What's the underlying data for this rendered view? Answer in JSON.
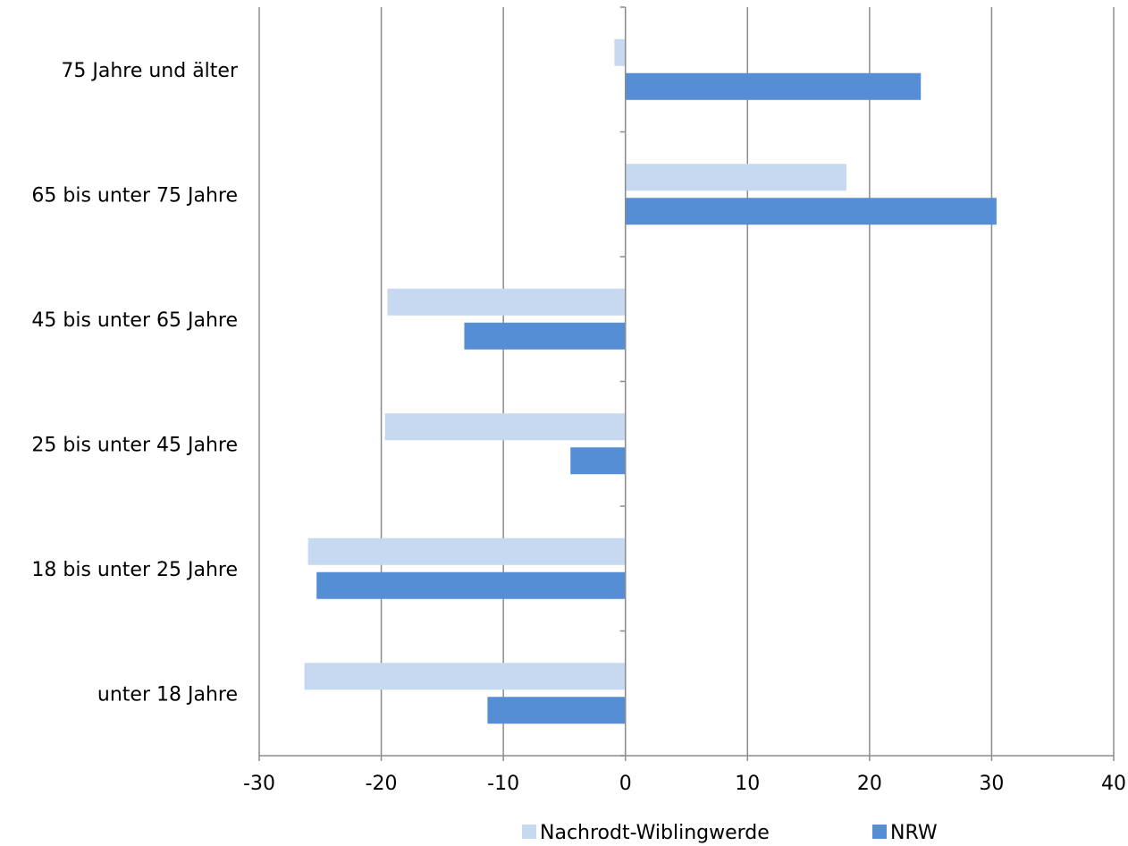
{
  "chart_data": {
    "type": "bar",
    "orientation": "horizontal",
    "categories": [
      "75 Jahre und älter",
      "65 bis unter 75 Jahre",
      "45 bis unter 65 Jahre",
      "25 bis unter 45 Jahre",
      "18 bis unter 25 Jahre",
      "unter 18 Jahre"
    ],
    "series": [
      {
        "name": "Nachrodt-Wiblingwerde",
        "color": "#c6d9f1",
        "values": [
          -0.9,
          18.1,
          -19.5,
          -19.7,
          -26.0,
          -26.3
        ]
      },
      {
        "name": "NRW",
        "color": "#558ed5",
        "values": [
          24.2,
          30.4,
          -13.2,
          -4.5,
          -25.3,
          -11.3
        ]
      }
    ],
    "xlim": [
      -30,
      40
    ],
    "xticks": [
      "-30",
      "-20",
      "-10",
      "0",
      "10",
      "20",
      "30",
      "40"
    ],
    "grid": "vertical",
    "legend": "bottom",
    "title": "",
    "xlabel": "",
    "ylabel": ""
  }
}
